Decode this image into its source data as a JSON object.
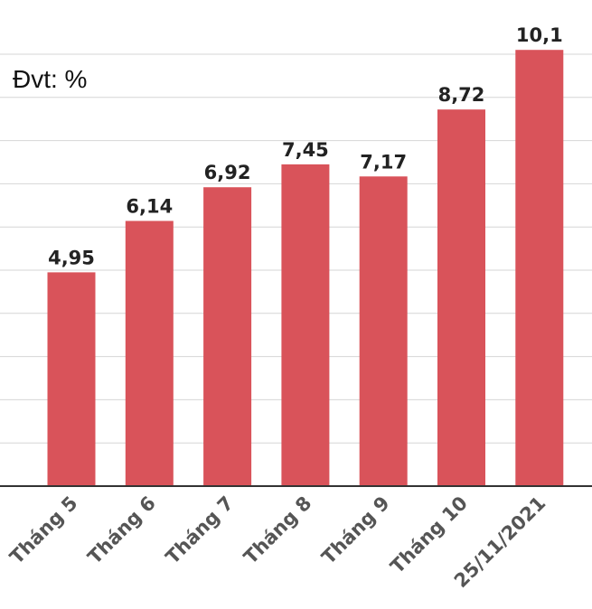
{
  "unit_label": "Đvt: %",
  "chart_data": {
    "type": "bar",
    "categories": [
      "Tháng 5",
      "Tháng 6",
      "Tháng 7",
      "Tháng 8",
      "Tháng 9",
      "Tháng 10",
      "25/11/2021"
    ],
    "values": [
      4.95,
      6.14,
      6.92,
      7.45,
      7.17,
      8.72,
      10.1
    ],
    "value_labels": [
      "4,95",
      "6,14",
      "6,92",
      "7,45",
      "7,17",
      "8,72",
      "10,1"
    ],
    "ylim": [
      0,
      10
    ],
    "grid": true,
    "bar_color": "#d9535a"
  }
}
